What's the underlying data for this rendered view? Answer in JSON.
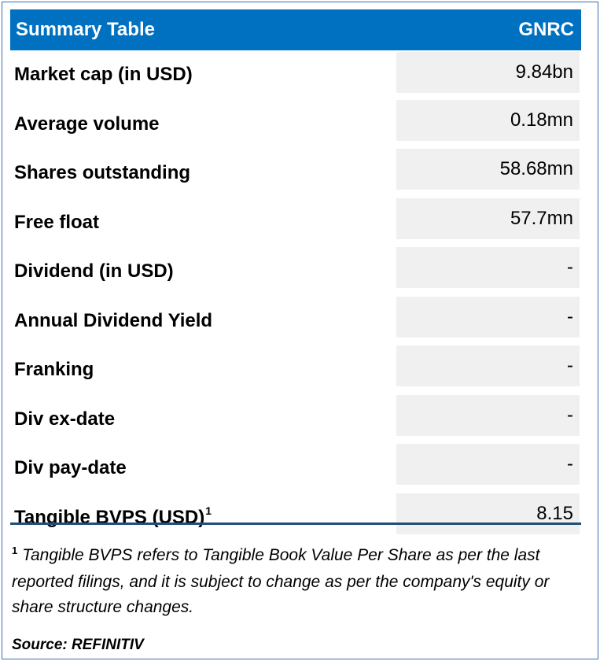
{
  "table": {
    "header_label": "Summary Table",
    "header_ticker": "GNRC",
    "rows": [
      {
        "label": "Market cap (in USD)",
        "value": "9.84bn"
      },
      {
        "label": "Average volume",
        "value": "0.18mn"
      },
      {
        "label": "Shares outstanding",
        "value": "58.68mn"
      },
      {
        "label": "Free float",
        "value": "57.7mn"
      },
      {
        "label": "Dividend (in USD)",
        "value": "-"
      },
      {
        "label": "Annual Dividend Yield",
        "value": "-"
      },
      {
        "label": "Franking",
        "value": "-"
      },
      {
        "label": "Div ex-date",
        "value": "-"
      },
      {
        "label": "Div pay-date",
        "value": "-"
      },
      {
        "label": "Tangible BVPS (USD)",
        "superscript": "1",
        "value": "8.15"
      }
    ]
  },
  "footnote": {
    "marker": "1",
    "text": "Tangible BVPS refers to Tangible Book Value Per Share as per the last reported filings, and it is subject to change as per the company's equity or share structure changes."
  },
  "source": "Source: REFINITIV",
  "colors": {
    "header_bg": "#0070c0",
    "cell_bg": "#f0f0f0",
    "rule": "#1f4e79"
  }
}
